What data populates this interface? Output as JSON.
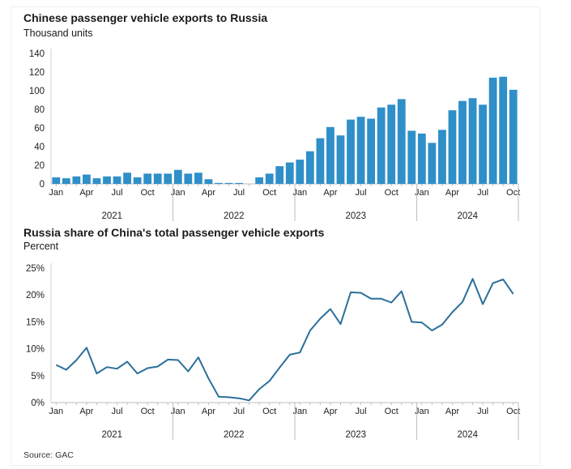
{
  "source": "Source: GAC",
  "chart_data": [
    {
      "type": "bar",
      "title": "Chinese passenger vehicle exports to Russia",
      "subtitle": "Thousand units",
      "color": "#2f8fc8",
      "ylim": [
        0,
        140
      ],
      "yticks": [
        0,
        20,
        40,
        60,
        80,
        100,
        120,
        140
      ],
      "month_tick_labels": [
        "Jan",
        "Apr",
        "Jul",
        "Oct"
      ],
      "years": [
        "2021",
        "2022",
        "2023",
        "2024"
      ],
      "values": [
        7,
        6,
        8,
        10,
        6,
        8,
        8,
        12,
        7,
        11,
        11,
        11,
        15,
        11,
        12,
        5,
        1,
        1,
        1,
        0,
        7,
        11,
        19,
        23,
        26,
        35,
        49,
        61,
        52,
        69,
        72,
        70,
        82,
        85,
        91,
        57,
        54,
        44,
        58,
        79,
        89,
        92,
        85,
        114,
        115,
        101
      ]
    },
    {
      "type": "line",
      "title": "Russia share of China's total passenger vehicle exports",
      "subtitle": "Percent",
      "color": "#2a6f9a",
      "ylim": [
        0,
        25
      ],
      "yticks": [
        0,
        5,
        10,
        15,
        20,
        25
      ],
      "ytick_labels": [
        "0%",
        "5%",
        "10%",
        "15%",
        "20%",
        "25%"
      ],
      "month_tick_labels": [
        "Jan",
        "Apr",
        "Jul",
        "Oct"
      ],
      "years": [
        "2021",
        "2022",
        "2023",
        "2024"
      ],
      "values": [
        7.0,
        6.1,
        7.9,
        10.2,
        5.4,
        6.6,
        6.3,
        7.6,
        5.4,
        6.4,
        6.7,
        8.0,
        7.9,
        5.8,
        8.4,
        4.5,
        1.1,
        1.0,
        0.8,
        0.4,
        2.5,
        4.0,
        6.5,
        8.9,
        9.3,
        13.4,
        15.6,
        17.4,
        14.6,
        20.5,
        20.4,
        19.3,
        19.3,
        18.6,
        20.7,
        15.0,
        14.9,
        13.4,
        14.5,
        16.8,
        18.7,
        23.0,
        18.3,
        22.2,
        22.9,
        20.2
      ]
    }
  ]
}
